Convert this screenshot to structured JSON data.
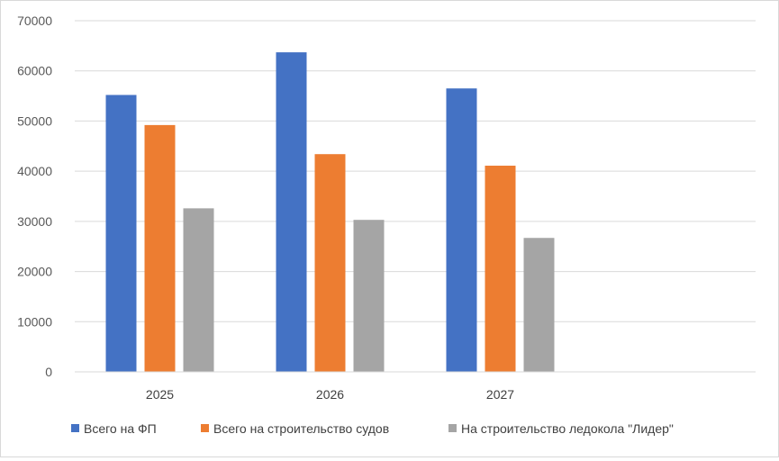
{
  "chart_data": {
    "type": "bar",
    "categories": [
      "2025",
      "2026",
      "2027",
      ""
    ],
    "series": [
      {
        "name": "Всего на ФП",
        "color": "#4472C4",
        "values": [
          55200,
          63700,
          56500,
          null
        ]
      },
      {
        "name": "Всего на строительство судов",
        "color": "#ED7D31",
        "values": [
          49200,
          43400,
          41100,
          null
        ]
      },
      {
        "name": "На строительство ледокола \"Лидер\"",
        "color": "#A5A5A5",
        "values": [
          32600,
          30300,
          26700,
          null
        ]
      }
    ],
    "title": "",
    "xlabel": "",
    "ylabel": "",
    "ylim": [
      0,
      70000
    ],
    "yticks": [
      0,
      10000,
      20000,
      30000,
      40000,
      50000,
      60000,
      70000
    ],
    "grid": true,
    "legend_position": "bottom",
    "gridline_color": "#d9d9d9"
  }
}
